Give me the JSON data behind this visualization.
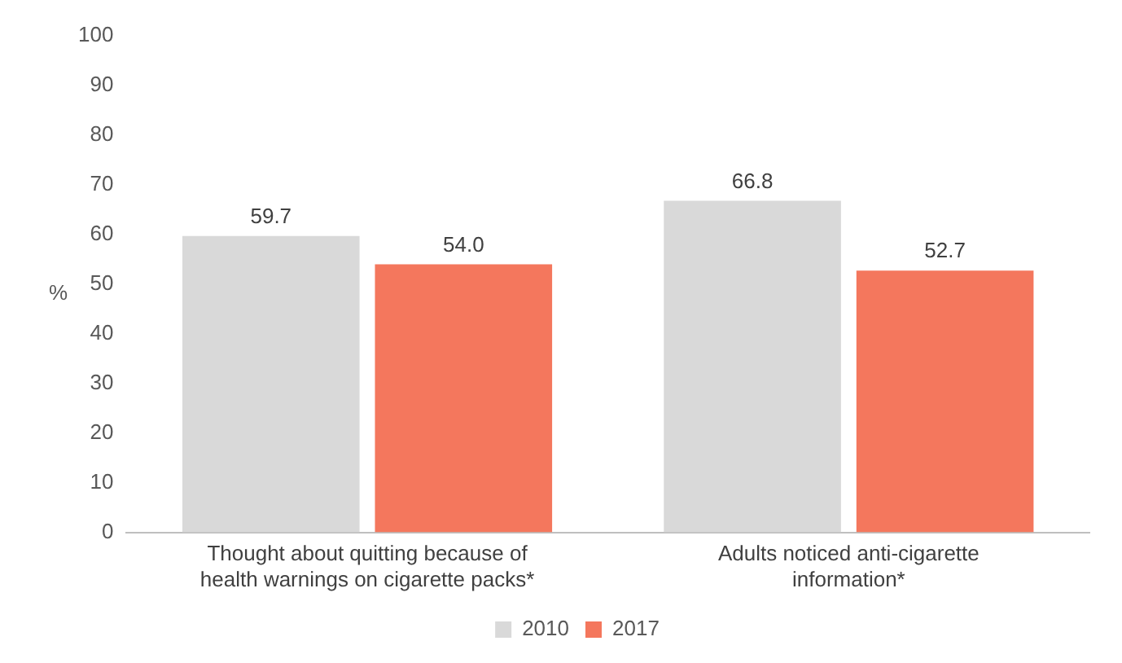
{
  "chart_data": {
    "type": "bar",
    "ylabel": "%",
    "categories": [
      "Thought about quitting because of health warnings on cigarette packs*",
      "Adults noticed anti-cigarette information*"
    ],
    "series": [
      {
        "name": "2010",
        "color": "#d9d9d9",
        "values": [
          59.7,
          66.8
        ],
        "value_labels": [
          "59.7",
          "66.8"
        ]
      },
      {
        "name": "2017",
        "color": "#f4775d",
        "values": [
          54.0,
          52.7
        ],
        "value_labels": [
          "54.0",
          "52.7"
        ]
      }
    ],
    "ylim": [
      0,
      100
    ],
    "yticks": [
      0,
      10,
      20,
      30,
      40,
      50,
      60,
      70,
      80,
      90,
      100
    ],
    "grid": false,
    "legend": "bottom"
  }
}
